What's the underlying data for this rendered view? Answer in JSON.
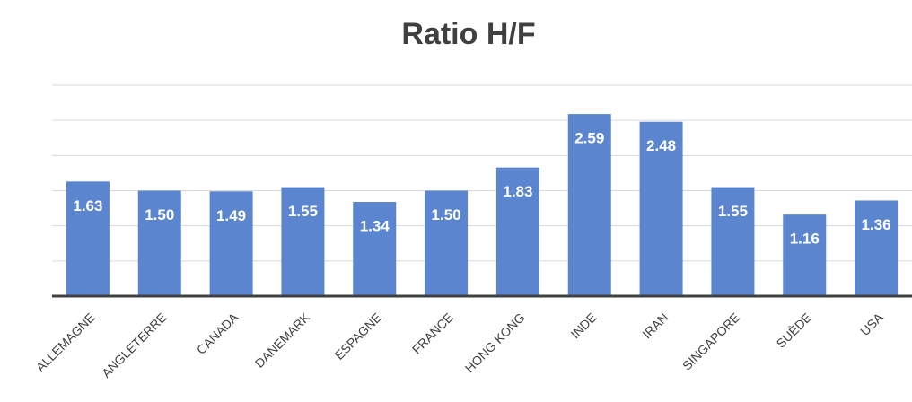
{
  "chart_data": {
    "type": "bar",
    "title": "Ratio H/F",
    "categories": [
      "ALLEMAGNE",
      "ANGLETERRE",
      "CANADA",
      "DANEMARK",
      "ESPAGNE",
      "FRANCE",
      "HONG KONG",
      "INDE",
      "IRAN",
      "SINGAPORE",
      "SUÈDE",
      "USA"
    ],
    "values": [
      1.63,
      1.5,
      1.49,
      1.55,
      1.34,
      1.5,
      1.83,
      2.59,
      2.48,
      1.55,
      1.16,
      1.36
    ],
    "value_labels": [
      "1.63",
      "1.50",
      "1.49",
      "1.55",
      "1.34",
      "1.50",
      "1.83",
      "2.59",
      "2.48",
      "1.55",
      "1.16",
      "1.36"
    ],
    "color": "#5b86cf",
    "ylim": [
      0,
      3
    ],
    "yticks": [
      0,
      0.5,
      1,
      1.5,
      2,
      2.5,
      3
    ],
    "grid": true
  }
}
